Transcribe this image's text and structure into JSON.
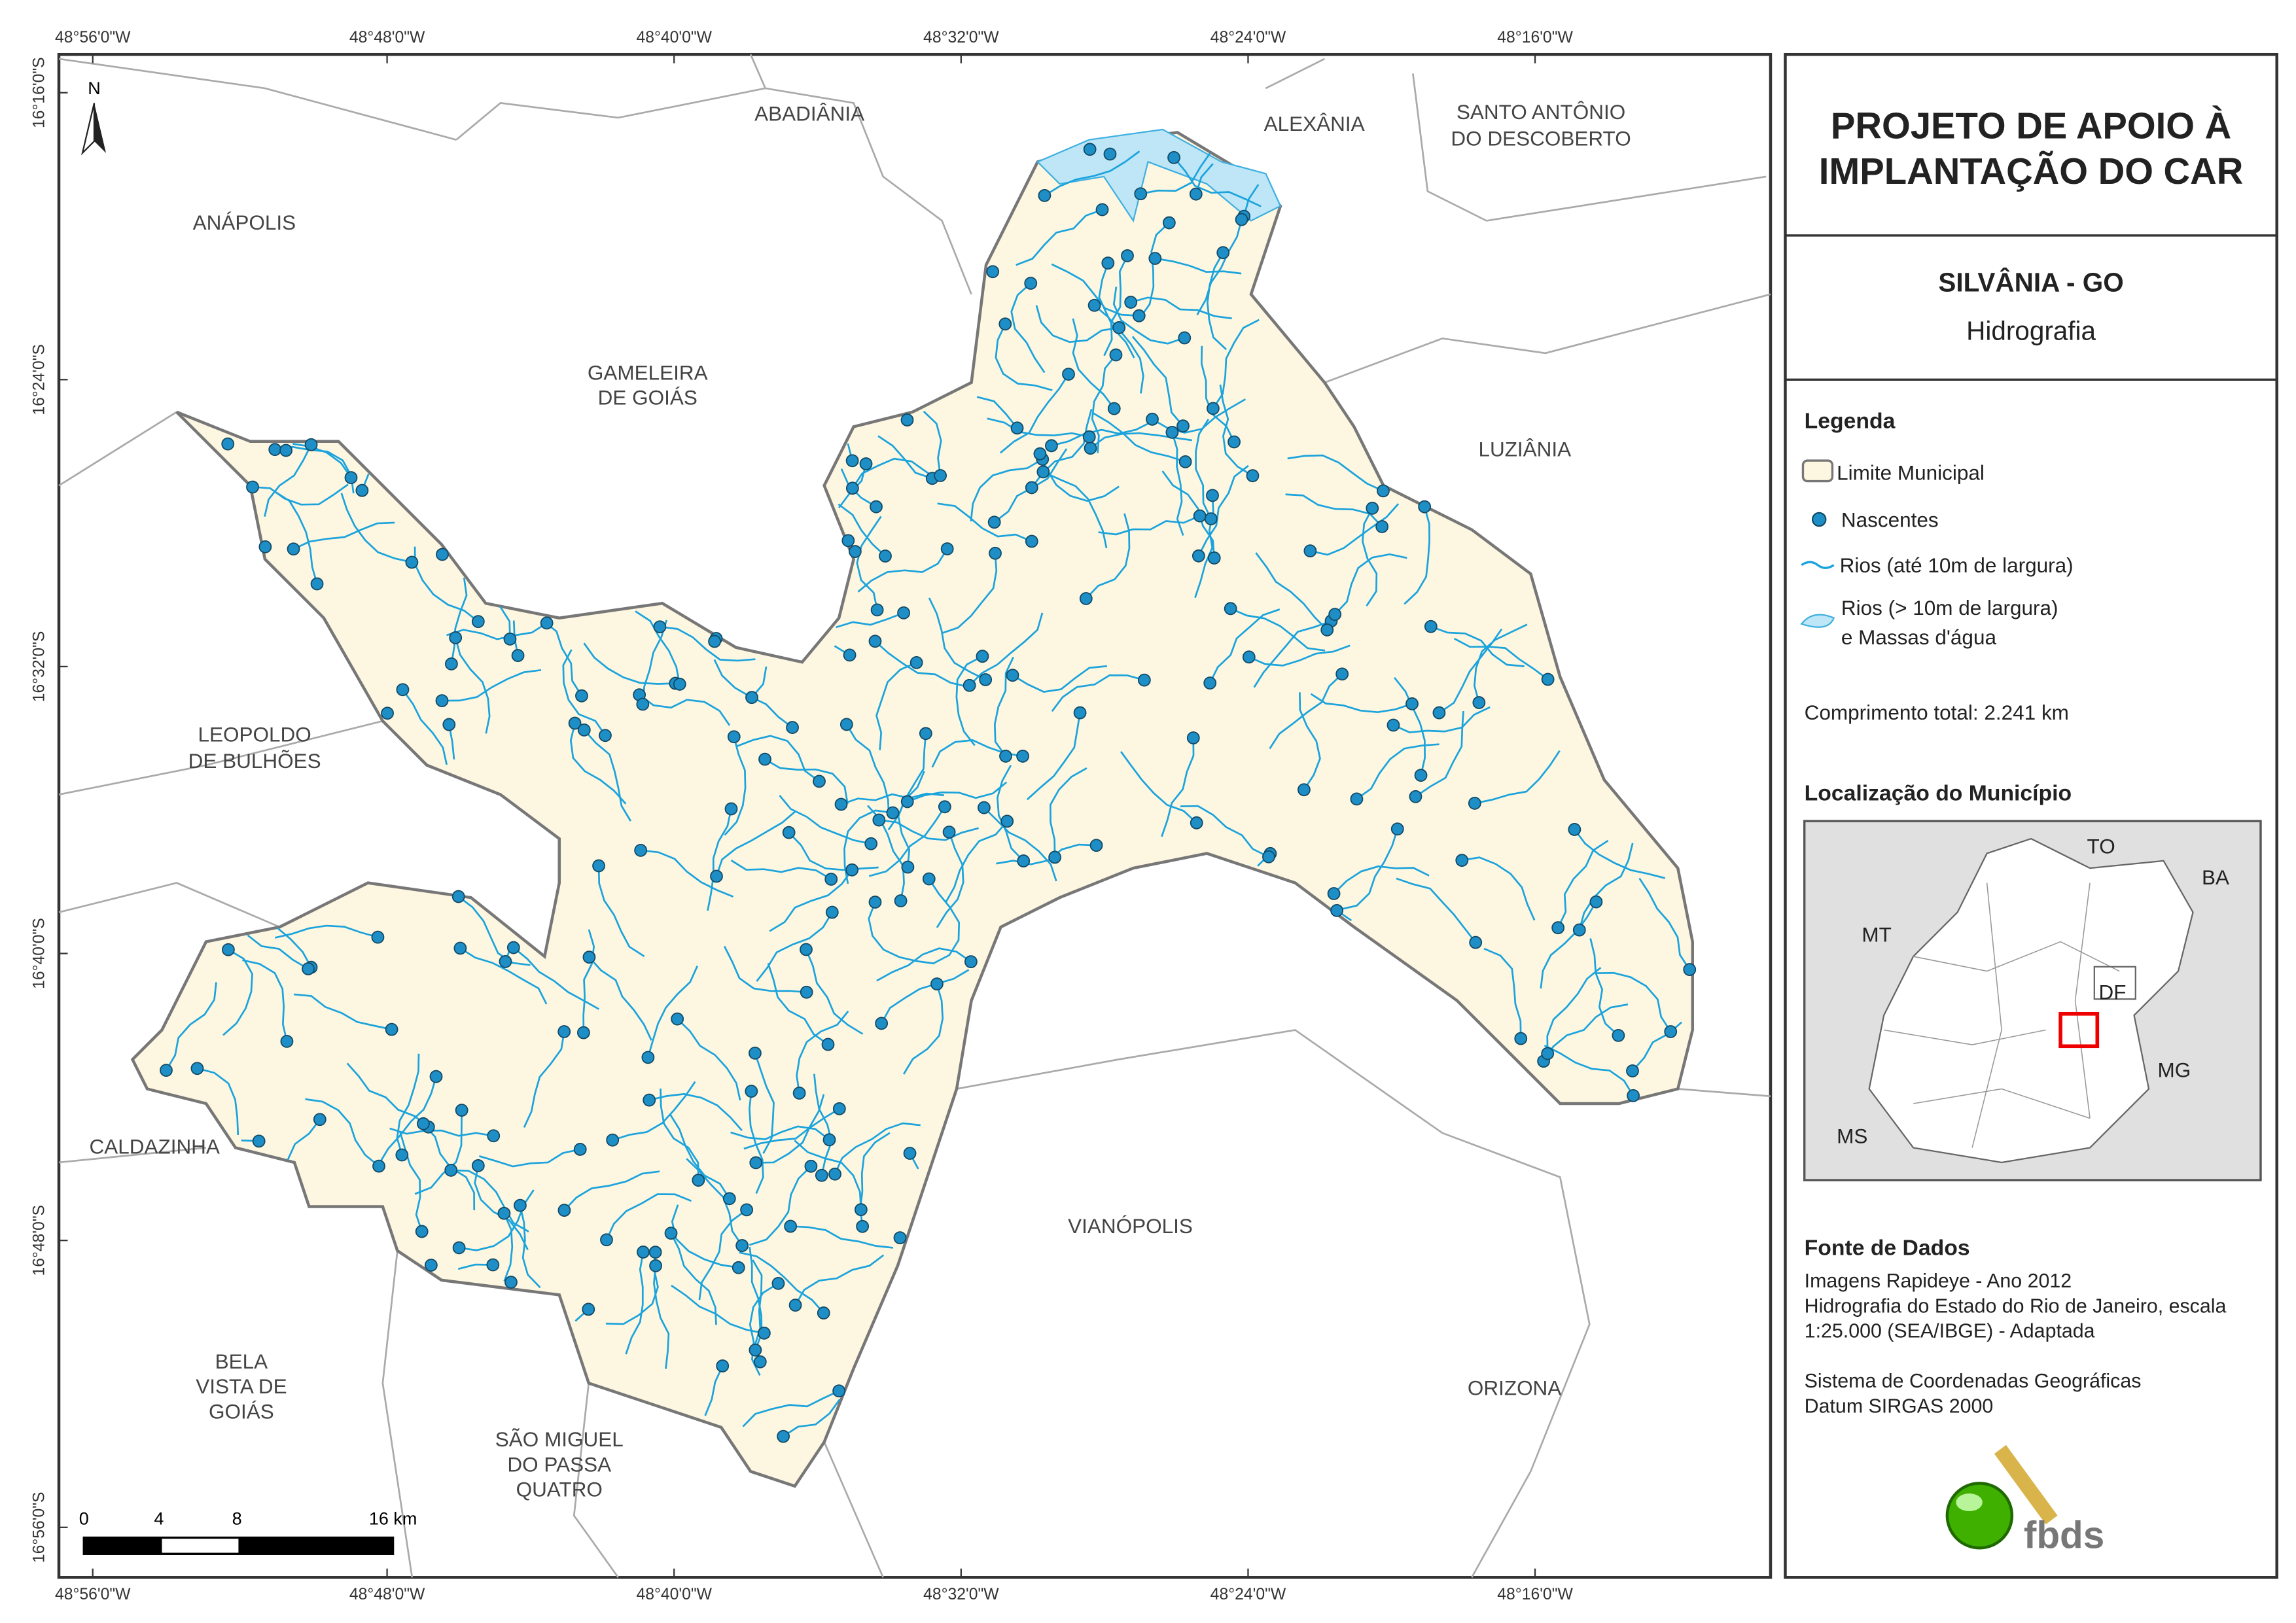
{
  "map": {
    "top_coords": [
      "48°56'0\"W",
      "48°48'0\"W",
      "48°40'0\"W",
      "48°32'0\"W",
      "48°24'0\"W",
      "48°16'0\"W"
    ],
    "bottom_coords": [
      "48°56'0\"W",
      "48°48'0\"W",
      "48°40'0\"W",
      "48°32'0\"W",
      "48°24'0\"W",
      "48°16'0\"W"
    ],
    "left_coords": [
      "16°16'0\"S",
      "16°24'0\"S",
      "16°32'0\"S",
      "16°40'0\"S",
      "16°48'0\"S",
      "16°56'0\"S"
    ],
    "north": "N",
    "neighbors": [
      [
        "ABADIÂNIA"
      ],
      [
        "ALEXÂNIA"
      ],
      [
        "SANTO ANTÔNIO",
        "DO DESCOBERTO"
      ],
      [
        "ANÁPOLIS"
      ],
      [
        "GAMELEIRA",
        "DE GOIÁS"
      ],
      [
        "LUZIÂNIA"
      ],
      [
        "LEOPOLDO",
        "DE BULHÕES"
      ],
      [
        "CALDAZINHA"
      ],
      [
        "VIANÓPOLIS"
      ],
      [
        "BELA",
        "VISTA DE",
        "GOIÁS"
      ],
      [
        "SÃO MIGUEL",
        "DO PASSA",
        "QUATRO"
      ],
      [
        "ORIZONA"
      ]
    ],
    "scale": [
      "0",
      "4",
      "8",
      "16 km"
    ]
  },
  "panel": {
    "title": [
      "PROJETO DE APOIO À",
      "IMPLANTAÇÃO DO CAR"
    ],
    "municipality": "SILVÂNIA - GO",
    "theme": "Hidrografia",
    "legend_title": "Legenda",
    "legend": [
      "Limite Municipal",
      "Nascentes",
      "Rios (até 10m de largura)",
      [
        "Rios (> 10m de largura)",
        "e Massas d'água"
      ]
    ],
    "total_length": "Comprimento total: 2.241 km",
    "location_title": "Localização do Município",
    "inset_labels": [
      "TO",
      "BA",
      "MT",
      "DF",
      "MG",
      "MS"
    ],
    "sources_title": "Fonte de Dados",
    "sources": [
      "Imagens Rapideye - Ano 2012",
      "Hidrografia do Estado do Rio de Janeiro, escala",
      "1:25.000 (SEA/IBGE) - Adaptada",
      "",
      "Sistema de Coordenadas Geográficas",
      "Datum SIRGAS 2000"
    ],
    "logo": "fbds"
  }
}
